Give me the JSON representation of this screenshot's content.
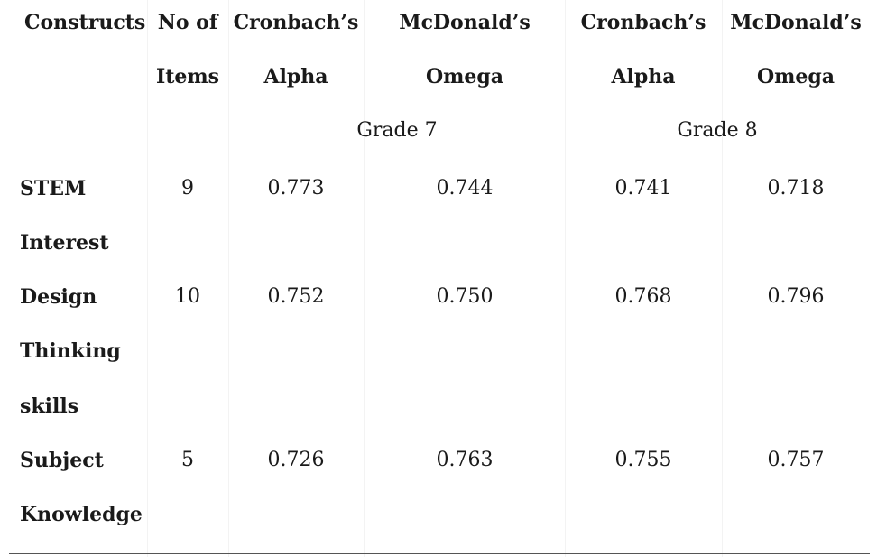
{
  "header": {
    "col1": {
      "line1": "Constructs"
    },
    "col2": {
      "line1": "No of",
      "line2": "Items"
    },
    "col3": {
      "line1": "Cronbach’s",
      "line2": "Alpha"
    },
    "col4": {
      "line1": "McDonald’s",
      "line2": "Omega"
    },
    "col5": {
      "line1": "Cronbach’s",
      "line2": "Alpha"
    },
    "col6": {
      "line1": "McDonald’s",
      "line2": "Omega"
    },
    "grade7": "Grade 7",
    "grade8": "Grade 8"
  },
  "rows": [
    {
      "construct_l1": "STEM",
      "construct_l2": "Interest",
      "construct_l3": "",
      "items": "9",
      "g7_alpha": "0.773",
      "g7_omega": "0.744",
      "g8_alpha": "0.741",
      "g8_omega": "0.718"
    },
    {
      "construct_l1": "Design",
      "construct_l2": "Thinking",
      "construct_l3": "skills",
      "items": "10",
      "g7_alpha": "0.752",
      "g7_omega": "0.750",
      "g8_alpha": "0.768",
      "g8_omega": "0.796"
    },
    {
      "construct_l1": "Subject",
      "construct_l2": "Knowledge",
      "construct_l3": "",
      "items": "5",
      "g7_alpha": "0.726",
      "g7_omega": "0.763",
      "g8_alpha": "0.755",
      "g8_omega": "0.757"
    }
  ]
}
